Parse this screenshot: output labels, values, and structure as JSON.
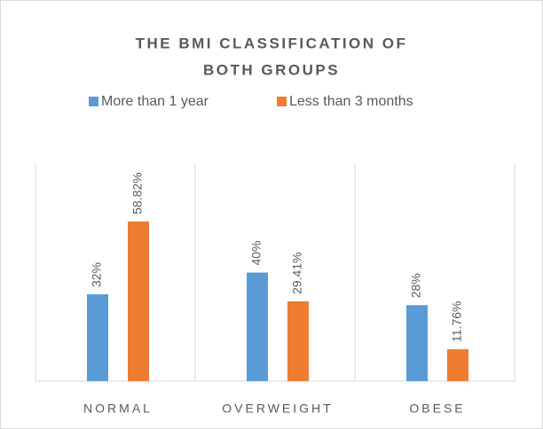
{
  "chart_data": {
    "type": "bar",
    "title": [
      "THE BMI CLASSIFICATION OF",
      "BOTH GROUPS"
    ],
    "categories": [
      "NORMAL",
      "OVERWEIGHT",
      "OBESE"
    ],
    "series": [
      {
        "name": "More than 1 year",
        "color": "#5b9bd5",
        "values": [
          32,
          40,
          28
        ],
        "value_labels": [
          "32%",
          "40%",
          "28%"
        ]
      },
      {
        "name": "Less than 3 months",
        "color": "#ed7d31",
        "values": [
          58.82,
          29.41,
          11.76
        ],
        "value_labels": [
          "58.82%",
          "29.41%",
          "11.76%"
        ]
      }
    ],
    "ylim": [
      0,
      80
    ],
    "legend": "top"
  }
}
